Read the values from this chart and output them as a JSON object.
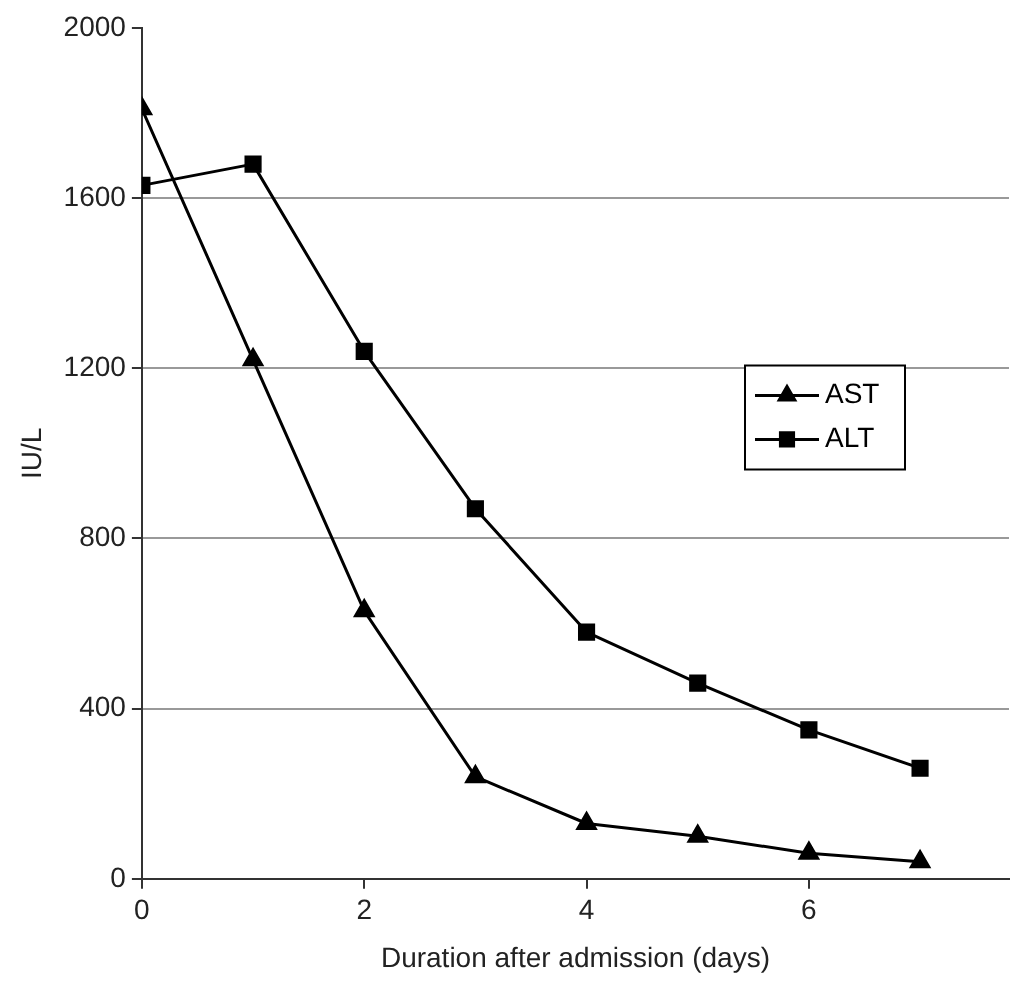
{
  "chart_data": {
    "type": "line",
    "xlabel": "Duration after admission (days)",
    "ylabel": "IU/L",
    "x": [
      0,
      1,
      2,
      3,
      4,
      5,
      6,
      7
    ],
    "series": [
      {
        "name": "AST",
        "color": "#000000",
        "marker": "triangle",
        "values": [
          1810,
          1220,
          630,
          240,
          130,
          100,
          60,
          40
        ]
      },
      {
        "name": "ALT",
        "color": "#000000",
        "marker": "square",
        "values": [
          1630,
          1680,
          1240,
          870,
          580,
          460,
          350,
          260
        ]
      }
    ],
    "xlim": [
      0,
      7.8
    ],
    "xticks": [
      0,
      2,
      4,
      6
    ],
    "ylim": [
      0,
      2000
    ],
    "yticks": [
      0,
      400,
      800,
      1200,
      1600,
      2000
    ],
    "grid": "y",
    "legend": "right",
    "line_style": "solid"
  }
}
